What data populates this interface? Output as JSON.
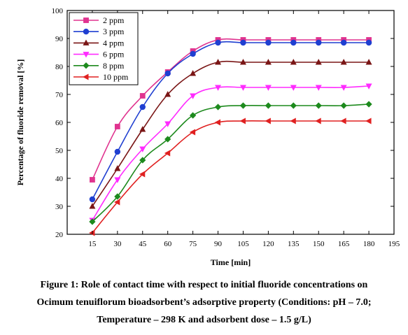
{
  "chart_data": {
    "type": "line",
    "xlabel": "Time [min]",
    "ylabel": "Percentage of fluoride removal [%]",
    "xlim": [
      0,
      195
    ],
    "ylim": [
      20,
      100
    ],
    "xticks": [
      15,
      30,
      45,
      60,
      75,
      90,
      105,
      120,
      135,
      150,
      165,
      180,
      195
    ],
    "yticks": [
      20,
      30,
      40,
      50,
      60,
      70,
      80,
      90,
      100
    ],
    "x": [
      15,
      30,
      45,
      60,
      75,
      90,
      105,
      120,
      135,
      150,
      165,
      180
    ],
    "legend_position": "top-left",
    "grid": false,
    "series": [
      {
        "name": "2 ppm",
        "color": "#e0338f",
        "marker": "square",
        "values": [
          39.5,
          58.5,
          69.5,
          78.0,
          85.5,
          89.5,
          89.5,
          89.5,
          89.5,
          89.5,
          89.5,
          89.5
        ]
      },
      {
        "name": "3 ppm",
        "color": "#1f3fd1",
        "marker": "circle",
        "values": [
          32.5,
          49.5,
          65.5,
          77.5,
          84.5,
          88.5,
          88.5,
          88.5,
          88.5,
          88.5,
          88.5,
          88.5
        ]
      },
      {
        "name": "4 ppm",
        "color": "#7a1616",
        "marker": "triangle-up",
        "values": [
          30.0,
          43.5,
          57.5,
          70.0,
          77.5,
          81.5,
          81.5,
          81.5,
          81.5,
          81.5,
          81.5,
          81.5
        ]
      },
      {
        "name": "6 ppm",
        "color": "#ff2bff",
        "marker": "triangle-down",
        "values": [
          25.0,
          39.5,
          50.5,
          59.5,
          69.5,
          72.5,
          72.5,
          72.5,
          72.5,
          72.5,
          72.5,
          73.0
        ]
      },
      {
        "name": "8 ppm",
        "color": "#1d8a1d",
        "marker": "diamond",
        "values": [
          24.5,
          33.5,
          46.5,
          54.0,
          62.5,
          65.5,
          66.0,
          66.0,
          66.0,
          66.0,
          66.0,
          66.5
        ]
      },
      {
        "name": "10 ppm",
        "color": "#e02020",
        "marker": "triangle-left",
        "values": [
          20.5,
          31.5,
          41.5,
          49.0,
          56.5,
          60.0,
          60.5,
          60.5,
          60.5,
          60.5,
          60.5,
          60.5
        ]
      }
    ]
  },
  "caption": {
    "line1": "Figure 1: Role of contact time with respect to initial fluoride concentrations on",
    "line2": "Ocimum tenuiflorum bioadsorbent’s adsorptive property (Conditions: pH – 7.0;",
    "line3": "Temperature – 298 K and adsorbent dose – 1.5 g/L)"
  }
}
